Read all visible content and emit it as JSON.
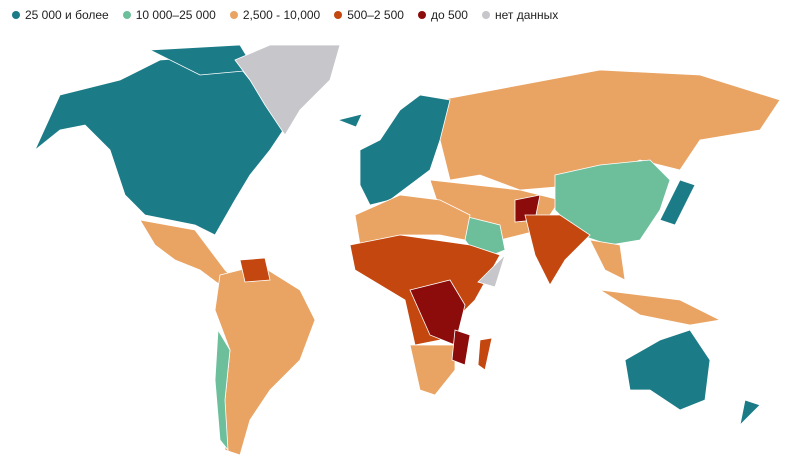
{
  "legend": {
    "items": [
      {
        "label": "25 000 и более",
        "color": "#1b7b87"
      },
      {
        "label": "10 000–25 000",
        "color": "#6dbf9c"
      },
      {
        "label": "2,500 - 10,000",
        "color": "#e9a363"
      },
      {
        "label": "500–2 500",
        "color": "#c4470f"
      },
      {
        "label": "до 500",
        "color": "#8c0c0c"
      },
      {
        "label": "нет данных",
        "color": "#c6c6cb"
      }
    ]
  }
}
